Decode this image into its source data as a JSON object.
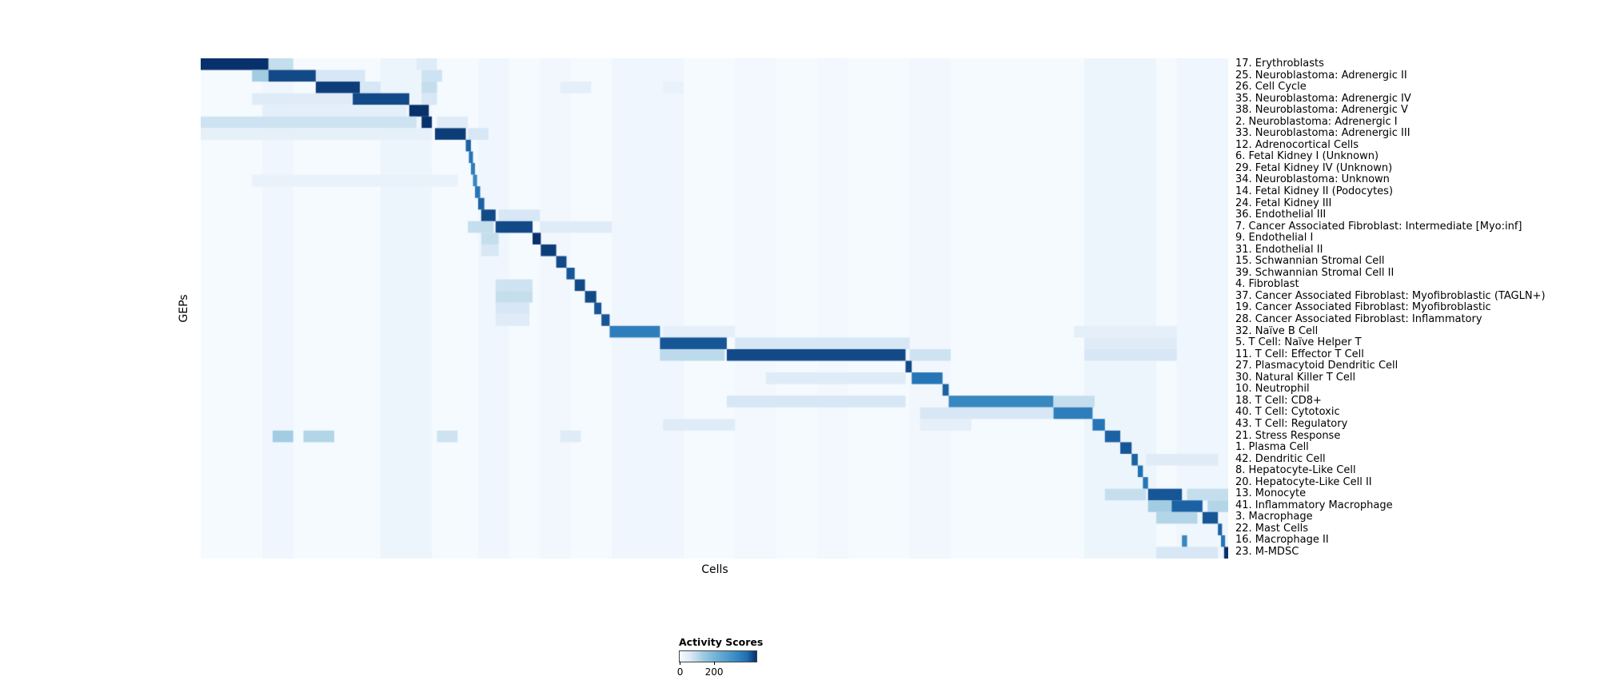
{
  "figure": {
    "ylabel": "GEPs",
    "xlabel": "Cells",
    "legend": {
      "title": "Activity Scores",
      "tick_min": "0",
      "tick_max": "200"
    }
  },
  "chart_data": {
    "type": "heatmap",
    "title": "",
    "xlabel": "Cells",
    "ylabel": "GEPs",
    "colormap": "Blues",
    "value_range": [
      0,
      200
    ],
    "legend_title": "Activity Scores",
    "legend_ticks": [
      0,
      200
    ],
    "base_value": 2,
    "rows": [
      {
        "label": "17. Erythroblasts",
        "segments": [
          [
            0.0,
            0.066,
            200
          ],
          [
            0.066,
            0.09,
            40
          ],
          [
            0.21,
            0.23,
            25
          ]
        ]
      },
      {
        "label": "25. Neuroblastoma: Adrenergic II",
        "segments": [
          [
            0.05,
            0.066,
            60
          ],
          [
            0.066,
            0.112,
            190
          ],
          [
            0.112,
            0.16,
            30
          ],
          [
            0.215,
            0.235,
            35
          ]
        ]
      },
      {
        "label": "26. Cell Cycle",
        "segments": [
          [
            0.112,
            0.155,
            195
          ],
          [
            0.155,
            0.175,
            30
          ],
          [
            0.215,
            0.23,
            40
          ],
          [
            0.35,
            0.38,
            20
          ],
          [
            0.45,
            0.47,
            15
          ]
        ]
      },
      {
        "label": "35. Neuroblastoma: Adrenergic IV",
        "segments": [
          [
            0.05,
            0.148,
            25
          ],
          [
            0.148,
            0.203,
            190
          ],
          [
            0.215,
            0.23,
            30
          ]
        ]
      },
      {
        "label": "38. Neuroblastoma: Adrenergic V",
        "segments": [
          [
            0.06,
            0.2,
            20
          ],
          [
            0.203,
            0.222,
            200
          ]
        ]
      },
      {
        "label": "2. Neuroblastoma: Adrenergic I",
        "segments": [
          [
            0.0,
            0.21,
            35
          ],
          [
            0.215,
            0.225,
            200
          ],
          [
            0.23,
            0.26,
            25
          ]
        ]
      },
      {
        "label": "33. Neuroblastoma: Adrenergic III",
        "segments": [
          [
            0.0,
            0.225,
            18
          ],
          [
            0.228,
            0.258,
            195
          ],
          [
            0.26,
            0.28,
            30
          ]
        ]
      },
      {
        "label": "12. Adrenocortical Cells",
        "segments": [
          [
            0.258,
            0.263,
            180
          ]
        ]
      },
      {
        "label": "6. Fetal Kidney I (Unknown)",
        "segments": [
          [
            0.261,
            0.265,
            170
          ]
        ]
      },
      {
        "label": "29. Fetal Kidney IV (Unknown)",
        "segments": [
          [
            0.263,
            0.267,
            160
          ]
        ]
      },
      {
        "label": "34. Neuroblastoma: Unknown",
        "segments": [
          [
            0.05,
            0.25,
            15
          ],
          [
            0.265,
            0.269,
            150
          ]
        ]
      },
      {
        "label": "14. Fetal Kidney II (Podocytes)",
        "segments": [
          [
            0.267,
            0.272,
            170
          ]
        ]
      },
      {
        "label": "24. Fetal Kidney III",
        "segments": [
          [
            0.27,
            0.276,
            180
          ]
        ]
      },
      {
        "label": "36. Endothelial III",
        "segments": [
          [
            0.273,
            0.287,
            190
          ],
          [
            0.29,
            0.33,
            30
          ]
        ]
      },
      {
        "label": "7. Cancer Associated Fibroblast: Intermediate [Myo:inf]",
        "segments": [
          [
            0.26,
            0.285,
            40
          ],
          [
            0.287,
            0.323,
            190
          ],
          [
            0.33,
            0.4,
            25
          ]
        ]
      },
      {
        "label": "9. Endothelial I",
        "segments": [
          [
            0.273,
            0.29,
            40
          ],
          [
            0.323,
            0.331,
            200
          ]
        ]
      },
      {
        "label": "31. Endothelial II",
        "segments": [
          [
            0.273,
            0.29,
            30
          ],
          [
            0.331,
            0.346,
            195
          ]
        ]
      },
      {
        "label": "15. Schwannian Stromal Cell",
        "segments": [
          [
            0.346,
            0.356,
            190
          ]
        ]
      },
      {
        "label": "39. Schwannian Stromal Cell II",
        "segments": [
          [
            0.356,
            0.364,
            185
          ]
        ]
      },
      {
        "label": "4. Fibroblast",
        "segments": [
          [
            0.287,
            0.323,
            35
          ],
          [
            0.364,
            0.374,
            190
          ]
        ]
      },
      {
        "label": "37. Cancer Associated Fibroblast: Myofibroblastic (TAGLN+)",
        "segments": [
          [
            0.287,
            0.323,
            40
          ],
          [
            0.374,
            0.385,
            190
          ]
        ]
      },
      {
        "label": "19. Cancer Associated Fibroblast: Myofibroblastic",
        "segments": [
          [
            0.287,
            0.32,
            30
          ],
          [
            0.383,
            0.39,
            185
          ]
        ]
      },
      {
        "label": "28. Cancer Associated Fibroblast: Inflammatory",
        "segments": [
          [
            0.287,
            0.32,
            25
          ],
          [
            0.39,
            0.398,
            185
          ]
        ]
      },
      {
        "label": "32. Naïve B Cell",
        "segments": [
          [
            0.398,
            0.447,
            160
          ],
          [
            0.45,
            0.52,
            20
          ],
          [
            0.85,
            0.95,
            20
          ]
        ]
      },
      {
        "label": "5. T Cell: Naïve Helper T",
        "segments": [
          [
            0.447,
            0.512,
            185
          ],
          [
            0.52,
            0.69,
            30
          ],
          [
            0.86,
            0.95,
            25
          ]
        ]
      },
      {
        "label": "11. T Cell: Effector T Cell",
        "segments": [
          [
            0.447,
            0.51,
            45
          ],
          [
            0.512,
            0.686,
            190
          ],
          [
            0.69,
            0.73,
            35
          ],
          [
            0.86,
            0.95,
            30
          ]
        ]
      },
      {
        "label": "27. Plasmacytoid Dendritic Cell",
        "segments": [
          [
            0.686,
            0.692,
            190
          ]
        ]
      },
      {
        "label": "30. Natural Killer T Cell",
        "segments": [
          [
            0.55,
            0.686,
            25
          ],
          [
            0.692,
            0.722,
            170
          ]
        ]
      },
      {
        "label": "10. Neutrophil",
        "segments": [
          [
            0.722,
            0.728,
            180
          ]
        ]
      },
      {
        "label": "18. T Cell: CD8+",
        "segments": [
          [
            0.512,
            0.686,
            30
          ],
          [
            0.728,
            0.83,
            150
          ],
          [
            0.83,
            0.87,
            40
          ]
        ]
      },
      {
        "label": "40. T Cell: Cytotoxic",
        "segments": [
          [
            0.7,
            0.83,
            30
          ],
          [
            0.83,
            0.868,
            160
          ]
        ]
      },
      {
        "label": "43. T Cell: Regulatory",
        "segments": [
          [
            0.45,
            0.52,
            25
          ],
          [
            0.7,
            0.75,
            20
          ],
          [
            0.868,
            0.88,
            170
          ]
        ]
      },
      {
        "label": "21. Stress Response",
        "segments": [
          [
            0.07,
            0.09,
            60
          ],
          [
            0.1,
            0.13,
            50
          ],
          [
            0.23,
            0.25,
            35
          ],
          [
            0.35,
            0.37,
            25
          ],
          [
            0.88,
            0.895,
            180
          ]
        ]
      },
      {
        "label": "1. Plasma Cell",
        "segments": [
          [
            0.895,
            0.906,
            185
          ]
        ]
      },
      {
        "label": "42. Dendritic Cell",
        "segments": [
          [
            0.906,
            0.912,
            180
          ],
          [
            0.92,
            0.99,
            25
          ]
        ]
      },
      {
        "label": "8. Hepatocyte-Like Cell",
        "segments": [
          [
            0.912,
            0.917,
            175
          ]
        ]
      },
      {
        "label": "20. Hepatocyte-Like Cell II",
        "segments": [
          [
            0.917,
            0.922,
            170
          ]
        ]
      },
      {
        "label": "13. Monocyte",
        "segments": [
          [
            0.88,
            0.92,
            40
          ],
          [
            0.922,
            0.955,
            185
          ],
          [
            0.96,
            1.0,
            40
          ]
        ]
      },
      {
        "label": "41. Inflammatory Macrophage",
        "segments": [
          [
            0.922,
            0.945,
            60
          ],
          [
            0.945,
            0.975,
            180
          ],
          [
            0.98,
            1.0,
            50
          ]
        ]
      },
      {
        "label": "3. Macrophage",
        "segments": [
          [
            0.93,
            0.97,
            50
          ],
          [
            0.975,
            0.99,
            185
          ]
        ]
      },
      {
        "label": "22. Mast Cells",
        "segments": [
          [
            0.99,
            0.994,
            180
          ]
        ]
      },
      {
        "label": "16. Macrophage II",
        "segments": [
          [
            0.955,
            0.96,
            150
          ],
          [
            0.993,
            0.997,
            170
          ]
        ]
      },
      {
        "label": "23. M-MDSC",
        "segments": [
          [
            0.93,
            0.99,
            30
          ],
          [
            0.996,
            1.0,
            200
          ]
        ]
      }
    ],
    "column_streaks": [
      [
        0.06,
        0.09,
        8
      ],
      [
        0.175,
        0.225,
        10
      ],
      [
        0.27,
        0.3,
        8
      ],
      [
        0.33,
        0.36,
        6
      ],
      [
        0.4,
        0.47,
        8
      ],
      [
        0.52,
        0.56,
        5
      ],
      [
        0.6,
        0.63,
        5
      ],
      [
        0.69,
        0.73,
        6
      ],
      [
        0.86,
        0.93,
        10
      ],
      [
        0.95,
        1.0,
        8
      ]
    ]
  }
}
